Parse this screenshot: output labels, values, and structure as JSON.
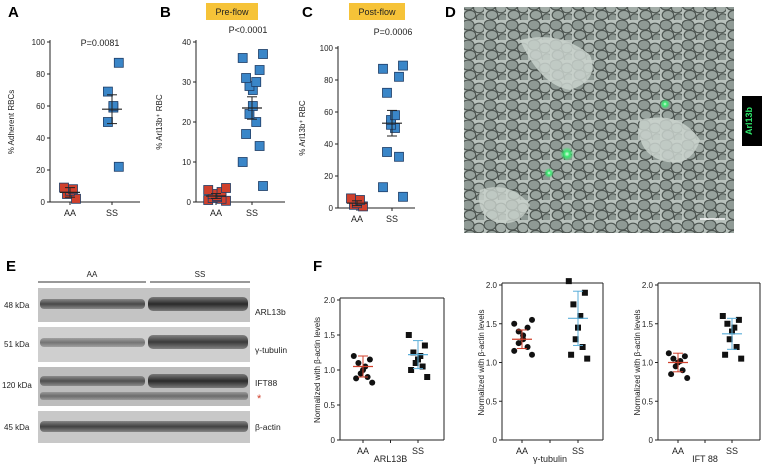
{
  "panels": {
    "A": {
      "letter": "A"
    },
    "B": {
      "letter": "B",
      "badge": "Pre-flow"
    },
    "C": {
      "letter": "C",
      "badge": "Post-flow"
    },
    "D": {
      "letter": "D",
      "channel_label": "Arl13b",
      "channel_color": "#2ee66b"
    },
    "E": {
      "letter": "E",
      "group_labels": [
        "AA",
        "SS"
      ],
      "bands": [
        {
          "kda": "48 kDa",
          "label": "ARL13b"
        },
        {
          "kda": "51 kDa",
          "label": "γ-tubulin"
        },
        {
          "kda": "120 kDa",
          "label": "IFT88"
        },
        {
          "kda": "45 kDa",
          "label": "β-actin"
        }
      ],
      "asterisk": "*"
    },
    "F": {
      "letter": "F"
    }
  },
  "chart_data": [
    {
      "id": "A",
      "type": "scatter",
      "ylabel": "% Adherent RBCs",
      "pvalue": "P=0.0081",
      "ylim": [
        0,
        100
      ],
      "yticks": [
        0,
        20,
        40,
        60,
        80,
        100
      ],
      "categories": [
        "AA",
        "SS"
      ],
      "series": [
        {
          "category": "AA",
          "marker": "square",
          "color": "#d0402c",
          "values": [
            2,
            5,
            7,
            8,
            9
          ],
          "mean": 6,
          "err": 3
        },
        {
          "category": "SS",
          "marker": "square",
          "color": "#3a86c8",
          "values": [
            22,
            50,
            59,
            60,
            69,
            87
          ],
          "mean": 58,
          "err": 9
        }
      ]
    },
    {
      "id": "B",
      "type": "scatter",
      "ylabel": "% Arl13b⁺ RBC",
      "pvalue": "P<0.0001",
      "ylim": [
        0,
        40
      ],
      "yticks": [
        0,
        10,
        20,
        30,
        40
      ],
      "categories": [
        "AA",
        "SS"
      ],
      "series": [
        {
          "category": "AA",
          "marker": "square",
          "color": "#d0402c",
          "values": [
            0.3,
            0.5,
            0.8,
            1.0,
            1.2,
            1.5,
            2.0,
            2.5,
            3.0,
            3.5
          ],
          "mean": 1.5,
          "err": 0.6
        },
        {
          "category": "SS",
          "marker": "square",
          "color": "#3a86c8",
          "values": [
            4,
            10,
            14,
            17,
            20,
            22,
            24,
            28,
            29,
            30,
            31,
            33,
            36,
            37
          ],
          "mean": 23.5,
          "err": 2.8
        }
      ]
    },
    {
      "id": "C",
      "type": "scatter",
      "ylabel": "% Arl13b⁺ RBC",
      "pvalue": "P=0.0006",
      "ylim": [
        0,
        100
      ],
      "yticks": [
        0,
        20,
        40,
        60,
        80,
        100
      ],
      "categories": [
        "AA",
        "SS"
      ],
      "series": [
        {
          "category": "AA",
          "marker": "square",
          "color": "#d0402c",
          "values": [
            1,
            2,
            3,
            5,
            6
          ],
          "mean": 3,
          "err": 1.5
        },
        {
          "category": "SS",
          "marker": "square",
          "color": "#3a86c8",
          "values": [
            7,
            13,
            32,
            35,
            50,
            52,
            55,
            58,
            72,
            82,
            87,
            89
          ],
          "mean": 53,
          "err": 8
        }
      ]
    },
    {
      "id": "F1",
      "type": "scatter",
      "ylabel": "Normalized with β-actin levels",
      "xlabel": "ARL13B",
      "ylim": [
        0,
        2
      ],
      "yticks": [
        0,
        0.5,
        1.0,
        1.5,
        2.0
      ],
      "categories": [
        "AA",
        "SS"
      ],
      "series": [
        {
          "category": "AA",
          "marker": "circle",
          "color": "#111111",
          "values": [
            0.82,
            0.88,
            0.9,
            0.95,
            1.0,
            1.05,
            1.1,
            1.15,
            1.2
          ],
          "mean": 1.05,
          "err": 0.15,
          "errcolor": "#d0402c"
        },
        {
          "category": "SS",
          "marker": "square",
          "color": "#111111",
          "values": [
            0.9,
            1.0,
            1.05,
            1.1,
            1.15,
            1.2,
            1.25,
            1.35,
            1.5
          ],
          "mean": 1.22,
          "err": 0.2,
          "errcolor": "#5aaed8"
        }
      ]
    },
    {
      "id": "F2",
      "type": "scatter",
      "ylabel": "Normalized with β-actin levels",
      "xlabel": "γ-tubulin",
      "ylim": [
        0,
        2
      ],
      "yticks": [
        0,
        0.5,
        1.0,
        1.5,
        2.0
      ],
      "categories": [
        "AA",
        "SS"
      ],
      "series": [
        {
          "category": "AA",
          "marker": "circle",
          "color": "#111111",
          "values": [
            1.1,
            1.15,
            1.2,
            1.25,
            1.3,
            1.35,
            1.4,
            1.45,
            1.5,
            1.55
          ],
          "mean": 1.3,
          "err": 0.12,
          "errcolor": "#d0402c"
        },
        {
          "category": "SS",
          "marker": "square",
          "color": "#111111",
          "values": [
            1.05,
            1.1,
            1.2,
            1.3,
            1.45,
            1.6,
            1.75,
            1.9,
            2.05
          ],
          "mean": 1.57,
          "err": 0.35,
          "errcolor": "#5aaed8"
        }
      ]
    },
    {
      "id": "F3",
      "type": "scatter",
      "ylabel": "Normalized with β-actin levels",
      "xlabel": "IFT 88",
      "ylim": [
        0,
        2
      ],
      "yticks": [
        0,
        0.5,
        1.0,
        1.5,
        2.0
      ],
      "categories": [
        "AA",
        "SS"
      ],
      "series": [
        {
          "category": "AA",
          "marker": "circle",
          "color": "#111111",
          "values": [
            0.8,
            0.85,
            0.9,
            0.95,
            1.0,
            1.02,
            1.05,
            1.08,
            1.12
          ],
          "mean": 1.0,
          "err": 0.12,
          "errcolor": "#d0402c"
        },
        {
          "category": "SS",
          "marker": "square",
          "color": "#111111",
          "values": [
            1.05,
            1.1,
            1.2,
            1.3,
            1.4,
            1.45,
            1.5,
            1.55,
            1.6
          ],
          "mean": 1.37,
          "err": 0.2,
          "errcolor": "#5aaed8"
        }
      ]
    }
  ]
}
